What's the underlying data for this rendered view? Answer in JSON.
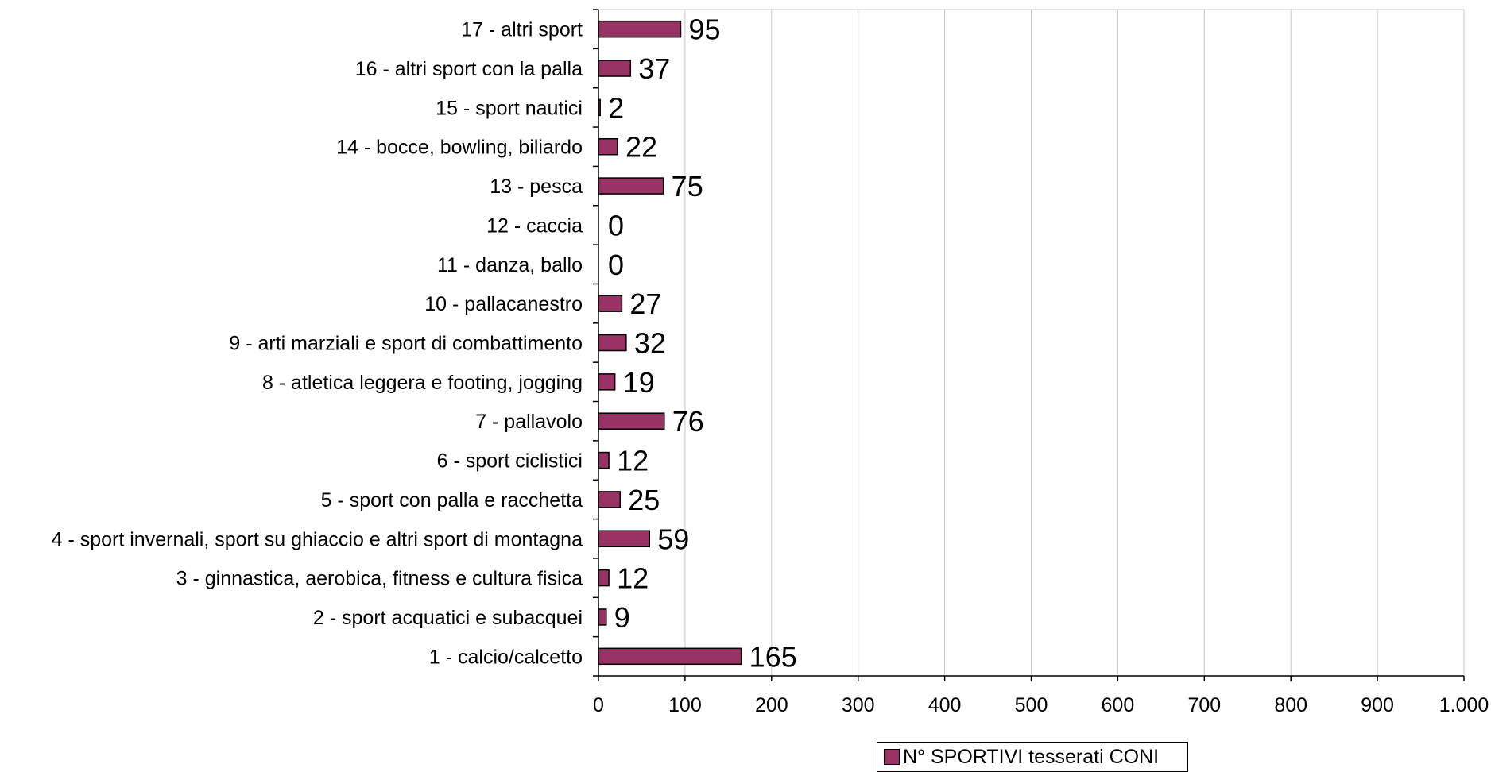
{
  "chart_data": {
    "type": "bar",
    "orientation": "horizontal",
    "categories": [
      "1 - calcio/calcetto",
      "2 - sport acquatici e subacquei",
      "3 - ginnastica, aerobica, fitness e cultura fisica",
      "4 - sport invernali, sport su ghiaccio e altri sport di montagna",
      "5 - sport con palla e racchetta",
      "6 - sport ciclistici",
      "7 - pallavolo",
      "8 - atletica leggera e footing, jogging",
      "9 - arti marziali e sport di combattimento",
      "10 - pallacanestro",
      "11 - danza, ballo",
      "12 - caccia",
      "13 - pesca",
      "14 - bocce, bowling, biliardo",
      "15 - sport nautici",
      "16 - altri sport con la palla",
      "17 - altri sport"
    ],
    "series": [
      {
        "name": "N° SPORTIVI tesserati CONI",
        "values": [
          165,
          9,
          12,
          59,
          25,
          12,
          76,
          19,
          32,
          27,
          0,
          0,
          75,
          22,
          2,
          37,
          95
        ]
      }
    ],
    "value_labels": [
      "165",
      "9",
      "12",
      "59",
      "25",
      "12",
      "76",
      "19",
      "32",
      "27",
      "0",
      "0",
      "75",
      "22",
      "2",
      "37",
      "95"
    ],
    "xlim": [
      0,
      1000
    ],
    "xticks": [
      0,
      100,
      200,
      300,
      400,
      500,
      600,
      700,
      800,
      900,
      1000
    ],
    "xtick_labels": [
      "0",
      "100",
      "200",
      "300",
      "400",
      "500",
      "600",
      "700",
      "800",
      "900",
      "1.000"
    ],
    "grid": "vertical",
    "legend_position": "bottom",
    "bar_color": "#993366"
  },
  "legend": {
    "label": "N° SPORTIVI tesserati CONI"
  }
}
